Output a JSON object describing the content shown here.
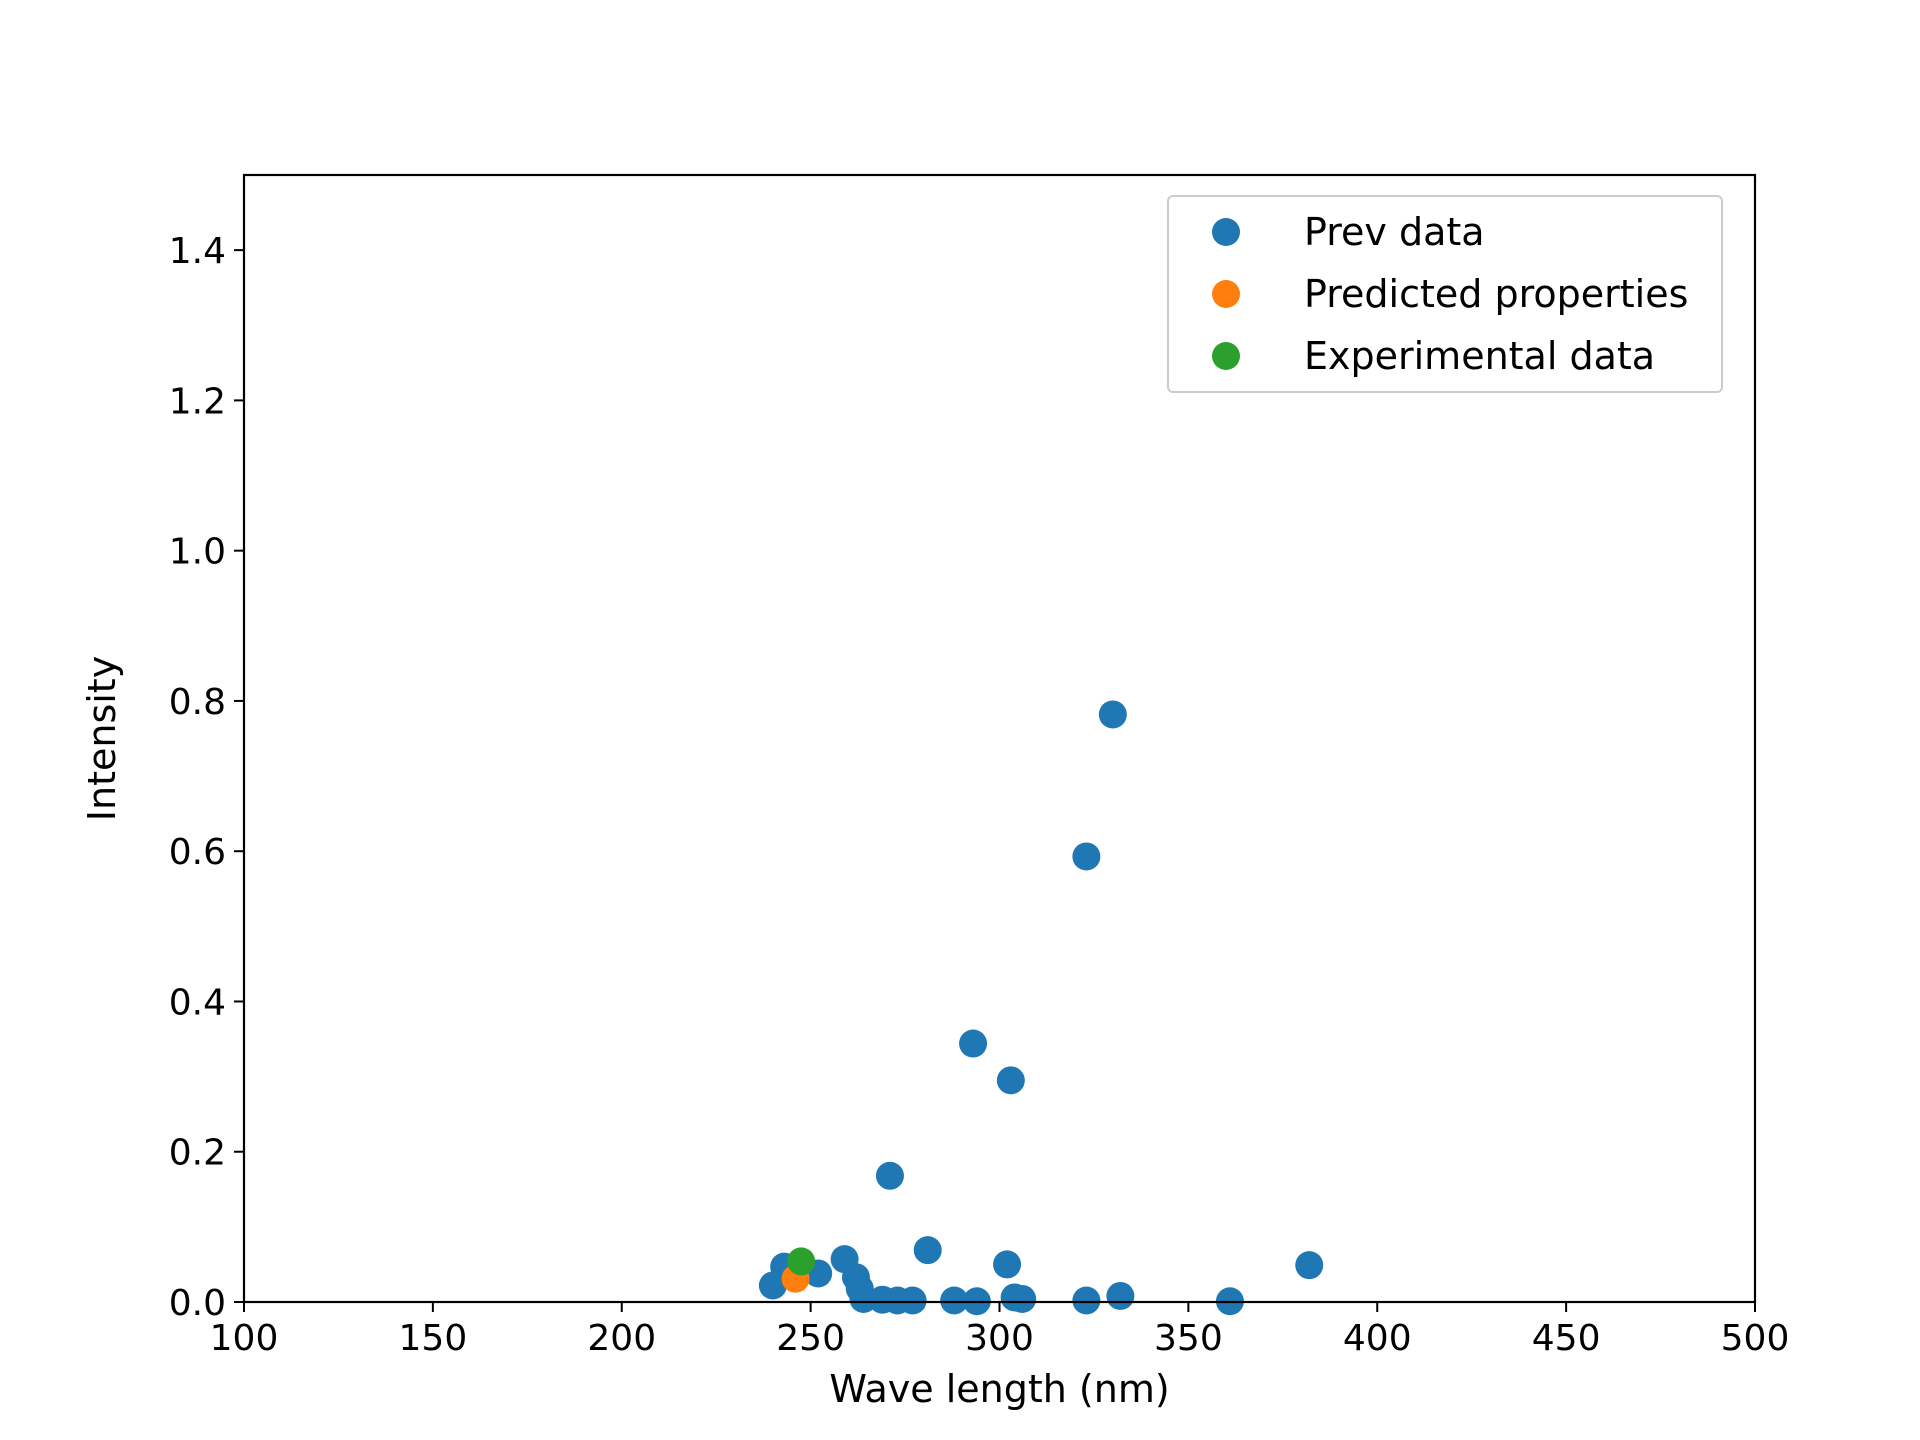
{
  "chart_data": {
    "type": "scatter",
    "title": "",
    "xlabel": "Wave length (nm)",
    "ylabel": "Intensity",
    "xlim": [
      100,
      500
    ],
    "ylim": [
      0,
      1.5
    ],
    "xticks": [
      100,
      150,
      200,
      250,
      300,
      350,
      400,
      450,
      500
    ],
    "yticks": [
      0.0,
      0.2,
      0.4,
      0.6,
      0.8,
      1.0,
      1.2,
      1.4
    ],
    "xtick_labels": [
      "100",
      "150",
      "200",
      "250",
      "300",
      "350",
      "400",
      "450",
      "500"
    ],
    "ytick_labels": [
      "0.0",
      "0.2",
      "0.4",
      "0.6",
      "0.8",
      "1.0",
      "1.2",
      "1.4"
    ],
    "grid": false,
    "legend_position": "top-right",
    "series": [
      {
        "name": "Prev data",
        "color": "#1f77b4",
        "points": [
          {
            "x": 240,
            "y": 0.022
          },
          {
            "x": 243,
            "y": 0.047
          },
          {
            "x": 252,
            "y": 0.038
          },
          {
            "x": 259,
            "y": 0.057
          },
          {
            "x": 262,
            "y": 0.033
          },
          {
            "x": 263,
            "y": 0.018
          },
          {
            "x": 264,
            "y": 0.004
          },
          {
            "x": 269,
            "y": 0.003
          },
          {
            "x": 271,
            "y": 0.168
          },
          {
            "x": 273,
            "y": 0.002
          },
          {
            "x": 277,
            "y": 0.002
          },
          {
            "x": 281,
            "y": 0.069
          },
          {
            "x": 288,
            "y": 0.002
          },
          {
            "x": 293,
            "y": 0.344
          },
          {
            "x": 294,
            "y": 0.001
          },
          {
            "x": 302,
            "y": 0.05
          },
          {
            "x": 303,
            "y": 0.295
          },
          {
            "x": 304,
            "y": 0.006
          },
          {
            "x": 306,
            "y": 0.004
          },
          {
            "x": 323,
            "y": 0.593
          },
          {
            "x": 323,
            "y": 0.002
          },
          {
            "x": 330,
            "y": 0.782
          },
          {
            "x": 332,
            "y": 0.008
          },
          {
            "x": 361,
            "y": 0.001
          },
          {
            "x": 382,
            "y": 0.049
          }
        ]
      },
      {
        "name": "Predicted properties",
        "color": "#ff7f0e",
        "points": [
          {
            "x": 246,
            "y": 0.031
          }
        ]
      },
      {
        "name": "Experimental data",
        "color": "#2ca02c",
        "points": [
          {
            "x": 247.5,
            "y": 0.054
          }
        ]
      }
    ]
  }
}
